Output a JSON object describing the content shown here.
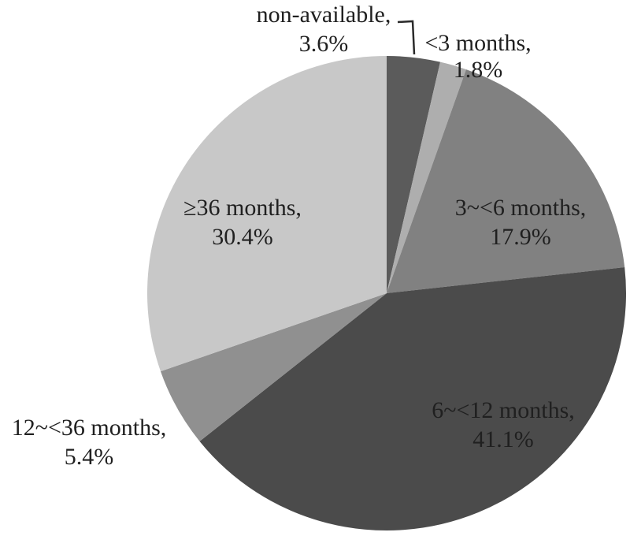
{
  "chart_data": {
    "type": "pie",
    "start_angle_deg": -90,
    "direction": "clockwise",
    "legend_position": "none",
    "label_color": "#202020",
    "background_color": "#ffffff",
    "slices": [
      {
        "id": "non-available",
        "label": "non-available",
        "value": 3.6,
        "color": "#5b5b5b",
        "display": [
          "non-available,",
          "3.6%"
        ]
      },
      {
        "id": "lt-3-months",
        "label": "<3 months",
        "value": 1.8,
        "color": "#aeaeae",
        "display": [
          "<3 months,",
          "1.8%"
        ]
      },
      {
        "id": "3-to-6-months",
        "label": "3~<6 months",
        "value": 17.9,
        "color": "#818181",
        "display": [
          "3~<6 months,",
          "17.9%"
        ]
      },
      {
        "id": "6-to-12-months",
        "label": "6~<12 months",
        "value": 41.1,
        "color": "#4b4b4b",
        "display": [
          "6~<12 months,",
          "41.1%"
        ]
      },
      {
        "id": "12-to-36-months",
        "label": "12~<36 months",
        "value": 5.4,
        "color": "#909090",
        "display": [
          "12~<36 months,",
          "5.4%"
        ]
      },
      {
        "id": "ge-36-months",
        "label": "≥36 months",
        "value": 30.4,
        "color": "#c8c8c8",
        "display": [
          "≥36 months,",
          "30.4%"
        ]
      }
    ]
  }
}
